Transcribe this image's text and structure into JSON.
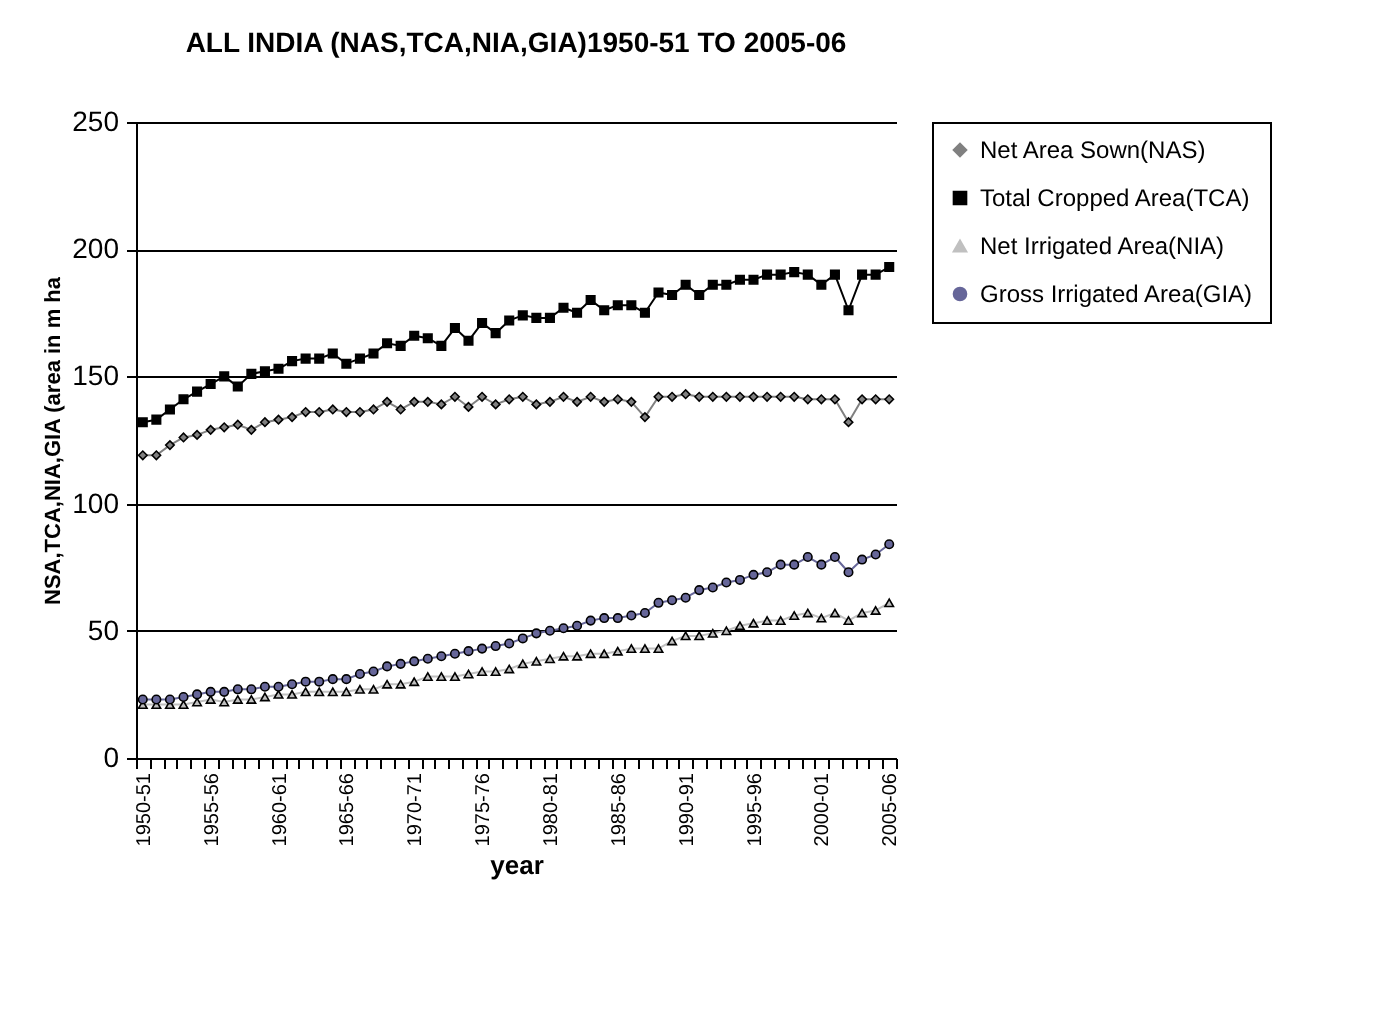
{
  "chart_data": {
    "type": "line",
    "title": "ALL INDIA (NAS,TCA,NIA,GIA)1950-51 TO 2005-06",
    "xlabel": "year",
    "ylabel": "NSA,TCA,NIA,GIA (area in m ha",
    "categories": [
      "1950-51",
      null,
      null,
      null,
      null,
      "1955-56",
      null,
      null,
      null,
      null,
      "1960-61",
      null,
      null,
      null,
      null,
      "1965-66",
      null,
      null,
      null,
      null,
      "1970-71",
      null,
      null,
      null,
      null,
      "1975-76",
      null,
      null,
      null,
      null,
      "1980-81",
      null,
      null,
      null,
      null,
      "1985-86",
      null,
      null,
      null,
      null,
      "1990-91",
      null,
      null,
      null,
      null,
      "1995-96",
      null,
      null,
      null,
      null,
      "2000-01",
      null,
      null,
      null,
      null,
      "2005-06"
    ],
    "series": [
      {
        "name": "Net Area Sown(NAS)",
        "color": "#808080",
        "marker": "diamond",
        "values": [
          119,
          119,
          123,
          126,
          127,
          129,
          130,
          131,
          129,
          132,
          133,
          134,
          136,
          136,
          137,
          136,
          136,
          137,
          140,
          137,
          140,
          140,
          139,
          142,
          138,
          142,
          139,
          141,
          142,
          139,
          140,
          142,
          140,
          142,
          140,
          141,
          140,
          134,
          142,
          142,
          143,
          142,
          142,
          142,
          142,
          142,
          142,
          142,
          142,
          141,
          141,
          141,
          132,
          141,
          141,
          141
        ]
      },
      {
        "name": "Total Cropped Area(TCA)",
        "color": "#000000",
        "marker": "square",
        "values": [
          132,
          133,
          137,
          141,
          144,
          147,
          150,
          146,
          151,
          152,
          153,
          156,
          157,
          157,
          159,
          155,
          157,
          159,
          163,
          162,
          166,
          165,
          162,
          169,
          164,
          171,
          167,
          172,
          174,
          173,
          173,
          177,
          175,
          180,
          176,
          178,
          178,
          175,
          183,
          182,
          186,
          182,
          186,
          186,
          188,
          188,
          190,
          190,
          191,
          190,
          186,
          190,
          176,
          190,
          190,
          193
        ]
      },
      {
        "name": "Net Irrigated Area(NIA)",
        "color": "#c0c0c0",
        "marker": "triangle",
        "values": [
          21,
          21,
          21,
          21,
          22,
          23,
          22,
          23,
          23,
          24,
          25,
          25,
          26,
          26,
          26,
          26,
          27,
          27,
          29,
          29,
          30,
          32,
          32,
          32,
          33,
          34,
          34,
          35,
          37,
          38,
          39,
          40,
          40,
          41,
          41,
          42,
          43,
          43,
          43,
          46,
          48,
          48,
          49,
          50,
          52,
          53,
          54,
          54,
          56,
          57,
          55,
          57,
          54,
          57,
          58,
          61
        ]
      },
      {
        "name": "Gross Irrigated Area(GIA)",
        "color": "#666699",
        "marker": "circle",
        "values": [
          23,
          23,
          23,
          24,
          25,
          26,
          26,
          27,
          27,
          28,
          28,
          29,
          30,
          30,
          31,
          31,
          33,
          34,
          36,
          37,
          38,
          39,
          40,
          41,
          42,
          43,
          44,
          45,
          47,
          49,
          50,
          51,
          52,
          54,
          55,
          55,
          56,
          57,
          61,
          62,
          63,
          66,
          67,
          69,
          70,
          72,
          73,
          76,
          76,
          79,
          76,
          79,
          73,
          78,
          80,
          84
        ]
      }
    ],
    "ylim": [
      0,
      250
    ],
    "yticks": [
      0,
      50,
      100,
      150,
      200,
      250
    ],
    "grid": "y",
    "legend": "right"
  }
}
